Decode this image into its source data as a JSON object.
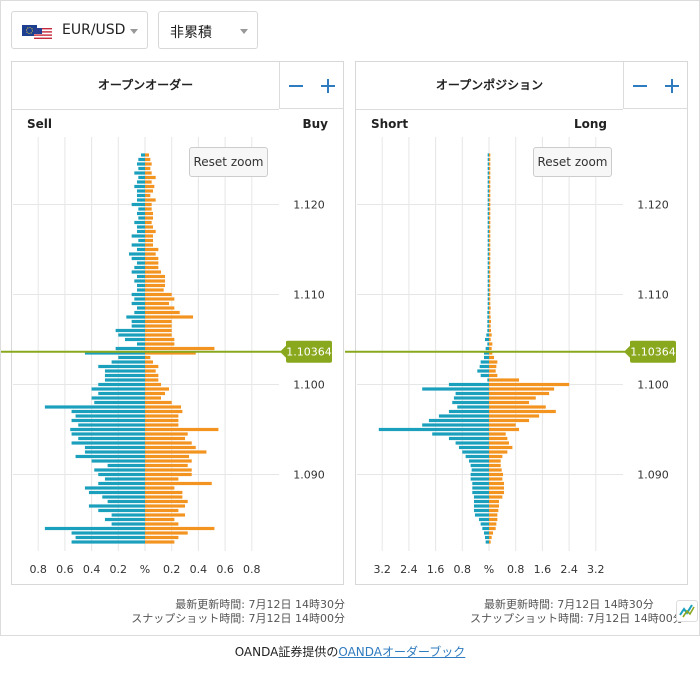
{
  "currency_select": {
    "pair": "EUR/USD"
  },
  "mode_select": {
    "value": "非累積"
  },
  "colors": {
    "buy": "#f39421",
    "sell": "#1aa0bd",
    "current_price": "#8aa81e",
    "grid": "#e6e6e6"
  },
  "order_panel": {
    "title": "オープンオーダー",
    "left_label": "Sell",
    "right_label": "Buy",
    "reset_zoom": "Reset zoom",
    "current_price": "1.10364",
    "updated_time": "最新更新時間: 7月12日 14時30分",
    "snapshot_time": "スナップショット時間: 7月12日 14時00分"
  },
  "position_panel": {
    "title": "オープンポジション",
    "left_label": "Short",
    "right_label": "Long",
    "reset_zoom": "Reset zoom",
    "current_price": "1.10364",
    "updated_time": "最新更新時間: 7月12日 14時30分",
    "snapshot_time": "スナップショット時間: 7月12日 14時00分"
  },
  "footer": {
    "prefix": "OANDA証券提供の",
    "link": "OANDAオーダーブック"
  },
  "chart_data": [
    {
      "type": "bar",
      "title": "オープンオーダー",
      "orientation": "horizontal",
      "x_ticks": [
        "0.8",
        "0.6",
        "0.4",
        "0.2",
        "%",
        "0.2",
        "0.4",
        "0.6",
        "0.8"
      ],
      "y_ticks": [
        "1.120",
        "1.110",
        "1.100",
        "1.090"
      ],
      "ylim": [
        1.0815,
        1.1275
      ],
      "current_price": 1.10364,
      "series": [
        {
          "name": "Sell",
          "price_start": 1.0825,
          "step": 0.0005,
          "values": [
            0.55,
            0.52,
            0.55,
            0.75,
            0.25,
            0.3,
            0.25,
            0.35,
            0.42,
            0.28,
            0.32,
            0.42,
            0.45,
            0.35,
            0.3,
            0.35,
            0.38,
            0.28,
            0.4,
            0.52,
            0.45,
            0.45,
            0.55,
            0.5,
            0.55,
            0.56,
            0.5,
            0.55,
            0.52,
            0.55,
            0.75,
            0.38,
            0.4,
            0.35,
            0.4,
            0.35,
            0.3,
            0.3,
            0.3,
            0.35,
            0.25,
            0.2,
            0.45,
            0.22,
            0.06,
            0.15,
            0.2,
            0.22,
            0.1,
            0.1,
            0.14,
            0.08,
            0.06,
            0.1,
            0.08,
            0.1,
            0.06,
            0.06,
            0.08,
            0.06,
            0.1,
            0.08,
            0.06,
            0.1,
            0.12,
            0.06,
            0.1,
            0.05,
            0.1,
            0.06,
            0.06,
            0.08,
            0.05,
            0.06,
            0.05,
            0.1,
            0.06,
            0.06,
            0.06,
            0.08,
            0.06,
            0.05,
            0.08,
            0.05,
            0.06,
            0.05,
            0.03
          ]
        },
        {
          "name": "Buy",
          "price_start": 1.0825,
          "step": 0.0005,
          "values": [
            0.22,
            0.25,
            0.32,
            0.52,
            0.25,
            0.22,
            0.3,
            0.25,
            0.3,
            0.32,
            0.28,
            0.28,
            0.22,
            0.5,
            0.25,
            0.35,
            0.35,
            0.32,
            0.35,
            0.33,
            0.46,
            0.38,
            0.35,
            0.3,
            0.32,
            0.55,
            0.25,
            0.25,
            0.25,
            0.28,
            0.27,
            0.2,
            0.12,
            0.15,
            0.18,
            0.12,
            0.1,
            0.1,
            0.08,
            0.1,
            0.06,
            0.04,
            0.38,
            0.52,
            0.22,
            0.22,
            0.2,
            0.2,
            0.2,
            0.2,
            0.36,
            0.26,
            0.22,
            0.18,
            0.22,
            0.2,
            0.14,
            0.15,
            0.15,
            0.15,
            0.12,
            0.1,
            0.1,
            0.1,
            0.08,
            0.1,
            0.06,
            0.06,
            0.06,
            0.08,
            0.06,
            0.05,
            0.06,
            0.06,
            0.05,
            0.05,
            0.08,
            0.04,
            0.06,
            0.07,
            0.05,
            0.08,
            0.05,
            0.04,
            0.05,
            0.04,
            0.03
          ]
        }
      ]
    },
    {
      "type": "bar",
      "title": "オープンポジション",
      "orientation": "horizontal",
      "x_ticks": [
        "3.2",
        "2.4",
        "1.6",
        "0.8",
        "%",
        "0.8",
        "1.6",
        "2.4",
        "3.2"
      ],
      "y_ticks": [
        "1.120",
        "1.110",
        "1.100",
        "1.090"
      ],
      "ylim": [
        1.0815,
        1.1275
      ],
      "current_price": 1.10364,
      "series": [
        {
          "name": "Short",
          "price_start": 1.0825,
          "step": 0.0005,
          "values": [
            0.1,
            0.12,
            0.15,
            0.2,
            0.25,
            0.3,
            0.42,
            0.45,
            0.45,
            0.45,
            0.45,
            0.5,
            0.5,
            0.5,
            0.55,
            0.55,
            0.52,
            0.55,
            0.6,
            0.7,
            0.8,
            0.9,
            1.0,
            1.2,
            1.7,
            3.3,
            2.0,
            1.8,
            1.5,
            1.2,
            0.95,
            1.1,
            1.05,
            1.0,
            2.0,
            1.2,
            0.05,
            0.25,
            0.35,
            0.28,
            0.25,
            0.15,
            0.15,
            0.1,
            0.05,
            0.12,
            0.08,
            0.05,
            0.05,
            0.05,
            0.05,
            0.05,
            0.04,
            0.04,
            0.04,
            0.04,
            0.04,
            0.04,
            0.04,
            0.04,
            0.04,
            0.04,
            0.04,
            0.04,
            0.04,
            0.04,
            0.04,
            0.04,
            0.04,
            0.04,
            0.04,
            0.04,
            0.04,
            0.04,
            0.04,
            0.04,
            0.04,
            0.04,
            0.04,
            0.04,
            0.04,
            0.04,
            0.04,
            0.04,
            0.04,
            0.04,
            0.04
          ]
        },
        {
          "name": "Long",
          "price_start": 1.0825,
          "step": 0.0005,
          "values": [
            0.05,
            0.08,
            0.12,
            0.2,
            0.22,
            0.25,
            0.25,
            0.28,
            0.3,
            0.3,
            0.4,
            0.45,
            0.45,
            0.45,
            0.4,
            0.42,
            0.38,
            0.35,
            0.35,
            0.4,
            0.55,
            0.7,
            0.6,
            0.55,
            0.5,
            0.9,
            0.8,
            1.2,
            1.5,
            2.0,
            1.7,
            1.2,
            1.4,
            1.8,
            1.95,
            2.4,
            0.9,
            0.25,
            0.2,
            0.22,
            0.25,
            0.15,
            0.1,
            0.08,
            0.1,
            0.05,
            0.08,
            0.06,
            0.05,
            0.06,
            0.05,
            0.04,
            0.05,
            0.04,
            0.04,
            0.04,
            0.04,
            0.04,
            0.04,
            0.04,
            0.04,
            0.04,
            0.04,
            0.04,
            0.04,
            0.04,
            0.04,
            0.04,
            0.04,
            0.04,
            0.04,
            0.04,
            0.04,
            0.04,
            0.04,
            0.04,
            0.04,
            0.04,
            0.04,
            0.04,
            0.04,
            0.04,
            0.04,
            0.04,
            0.04,
            0.04,
            0.04
          ]
        }
      ]
    }
  ]
}
